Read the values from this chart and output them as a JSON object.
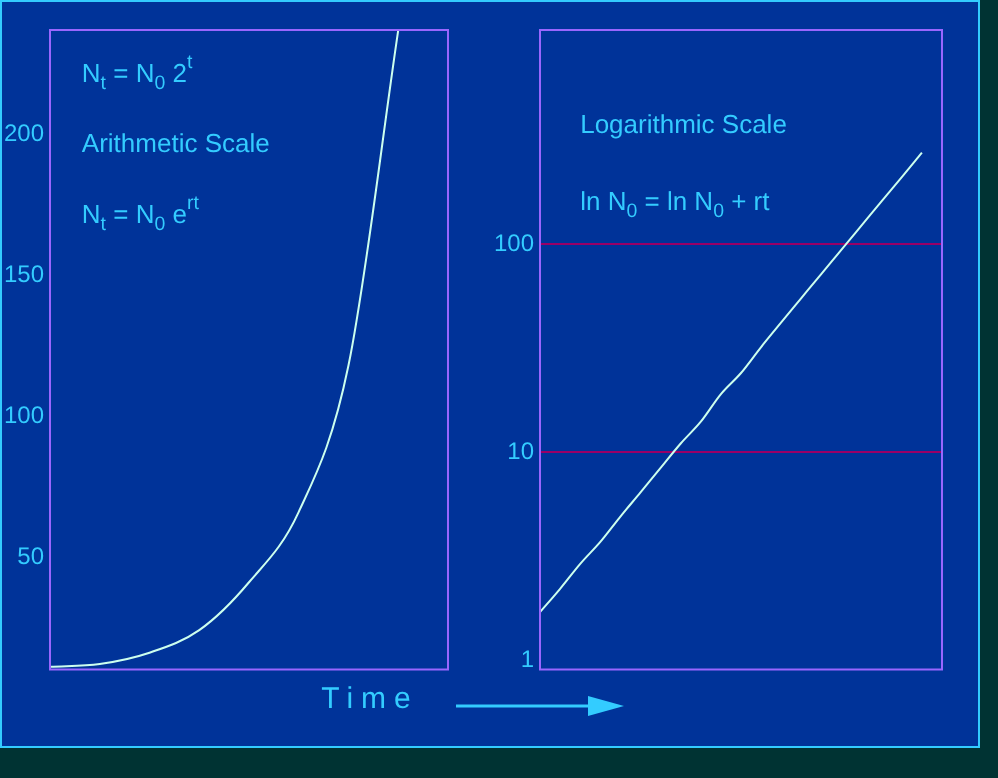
{
  "chart_data": [
    {
      "type": "line",
      "xlabel": "Time",
      "categories": [
        null,
        null,
        null,
        null,
        null,
        null,
        null,
        null,
        null
      ],
      "tick_labels": "y",
      "values": [
        11,
        12,
        16,
        24,
        41,
        66,
        118,
        237,
        null
      ],
      "color": "#ccffee",
      "ylim": [
        10,
        237
      ],
      "yticks": [
        50,
        100,
        150,
        200
      ],
      "annotations": [
        "N$_{t}$ = N$_{0}$ 2$^{t}$",
        "Arithmetic Scale",
        "N$_{t}$ = N$_{0}$ e$^{rt}$"
      ]
    },
    {
      "type": "line",
      "categories": [
        null,
        null,
        null,
        null,
        null,
        null,
        null,
        null,
        null,
        null,
        null,
        null,
        null,
        null,
        null,
        null,
        null,
        null,
        null,
        null,
        null
      ],
      "tick_labels": "y",
      "values": [
        1.7,
        2.2,
        2.9,
        3.7,
        4.9,
        6.4,
        8.4,
        11,
        14,
        19,
        24,
        32,
        42,
        55,
        72,
        94,
        123,
        161,
        210,
        275,
        null
      ],
      "color": "#ccffee",
      "log": "y",
      "ylim": [
        0.9,
        1070
      ],
      "yticks": [
        1,
        10,
        100
      ],
      "ref_lines": [
        {
          "axis": "y",
          "value": 10,
          "color": "#990066"
        },
        {
          "axis": "y",
          "value": 100,
          "color": "#990066"
        }
      ],
      "annotations": [
        "Logarithmic Scale",
        "ln N$_{0}$ = ln N$_{0}$ + rt"
      ]
    }
  ]
}
